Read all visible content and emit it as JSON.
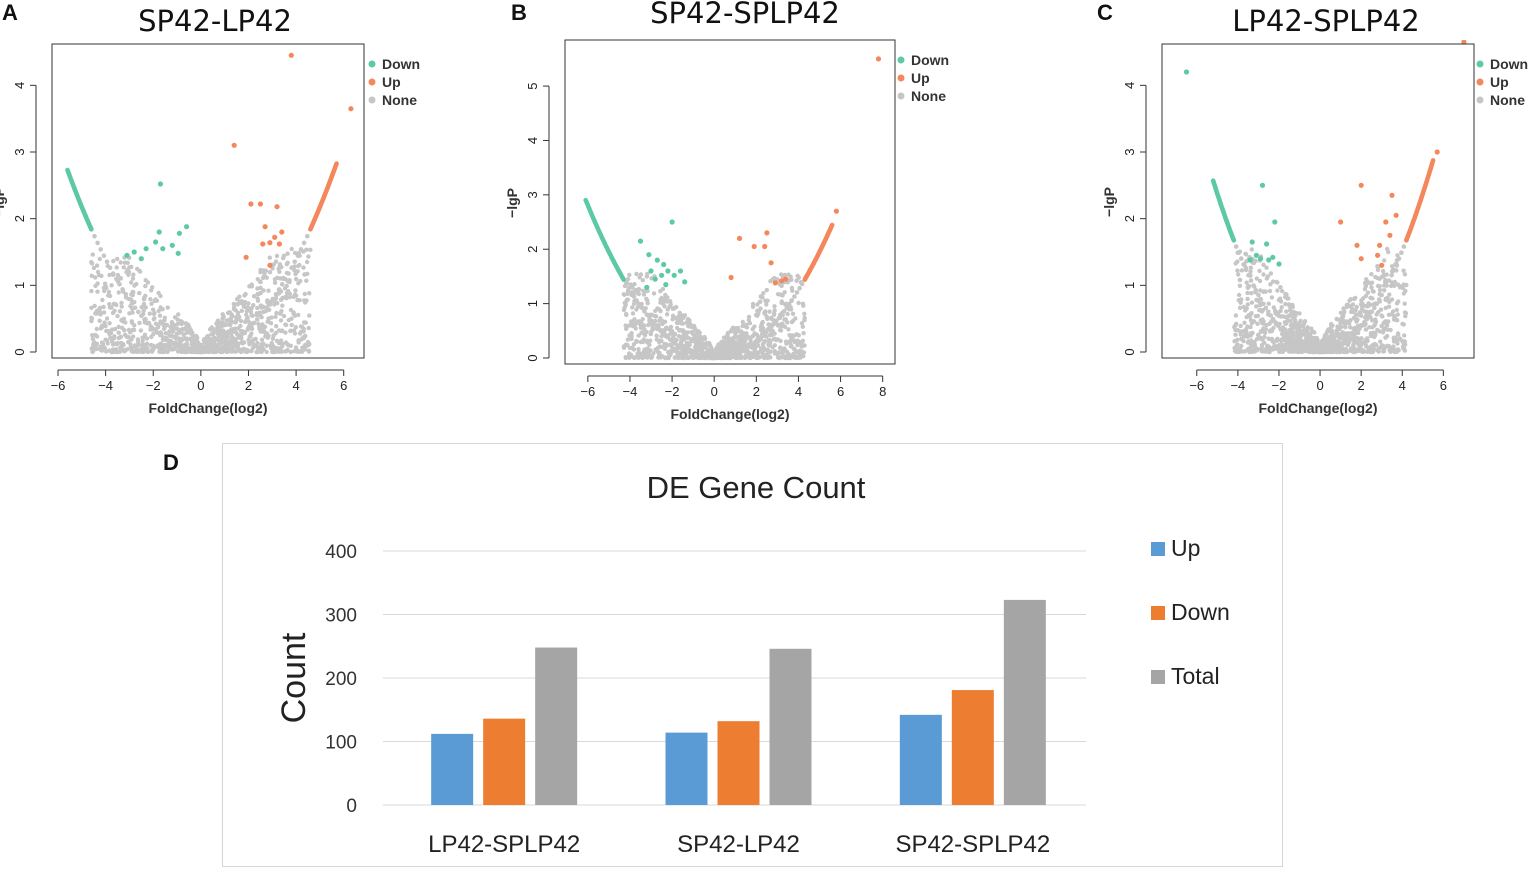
{
  "panels": {
    "a": {
      "letter": "A",
      "title": "SP42-LP42"
    },
    "b": {
      "letter": "B",
      "title": "SP42-SPLP42"
    },
    "c": {
      "letter": "C",
      "title": "LP42-SPLP42"
    },
    "d": {
      "letter": "D"
    }
  },
  "colors": {
    "down": "#5dc9a5",
    "up": "#f4875c",
    "none": "#c6c6c6",
    "bar_up": "#5b9bd5",
    "bar_down": "#ed7d31",
    "bar_total": "#a5a5a5"
  },
  "chart_data": [
    {
      "type": "scatter",
      "title": "SP42-LP42",
      "xlabel": "FoldChange(log2)",
      "ylabel": "-lgP",
      "xlim": [
        -6,
        6.6
      ],
      "ylim": [
        0,
        4.5
      ],
      "xticks": [
        -6,
        -4,
        -2,
        0,
        2,
        4,
        6
      ],
      "yticks": [
        0,
        1,
        2,
        3,
        4
      ],
      "legend": [
        "Down",
        "Up",
        "None"
      ],
      "legend_position": "top-right",
      "down_points": [
        [
          -3.1,
          1.45
        ],
        [
          -2.8,
          1.5
        ],
        [
          -2.3,
          1.55
        ],
        [
          -1.9,
          1.65
        ],
        [
          -1.75,
          1.8
        ],
        [
          -1.6,
          1.55
        ],
        [
          -1.2,
          1.6
        ],
        [
          -0.9,
          1.78
        ],
        [
          -0.6,
          1.88
        ],
        [
          -1.7,
          2.52
        ],
        [
          -2.5,
          1.4
        ],
        [
          -0.95,
          1.48
        ]
      ],
      "up_points": [
        [
          1.4,
          3.1
        ],
        [
          3.8,
          4.45
        ],
        [
          6.3,
          3.65
        ],
        [
          2.1,
          2.22
        ],
        [
          2.5,
          2.22
        ],
        [
          3.2,
          2.18
        ],
        [
          2.7,
          1.88
        ],
        [
          3.1,
          1.72
        ],
        [
          3.4,
          1.8
        ],
        [
          2.6,
          1.62
        ],
        [
          2.9,
          1.64
        ],
        [
          3.3,
          1.62
        ],
        [
          1.9,
          1.42
        ],
        [
          2.9,
          1.3
        ]
      ],
      "fringe_down": [
        -5.6,
        -4.6
      ],
      "fringe_up": [
        4.6,
        5.7
      ]
    },
    {
      "type": "scatter",
      "title": "SP42-SPLP42",
      "xlabel": "FoldChange(log2)",
      "ylabel": "-lgP",
      "xlim": [
        -6.8,
        8.3
      ],
      "ylim": [
        0,
        5.7
      ],
      "xticks": [
        -6,
        -4,
        -2,
        0,
        2,
        4,
        6,
        8
      ],
      "yticks": [
        0,
        1,
        2,
        3,
        4,
        5
      ],
      "legend": [
        "Down",
        "Up",
        "None"
      ],
      "legend_position": "top-right",
      "down_points": [
        [
          -3.5,
          2.15
        ],
        [
          -3.1,
          1.9
        ],
        [
          -2.7,
          1.8
        ],
        [
          -2.4,
          1.72
        ],
        [
          -2.2,
          1.6
        ],
        [
          -1.9,
          1.52
        ],
        [
          -1.6,
          1.6
        ],
        [
          -2.8,
          1.45
        ],
        [
          -3.0,
          1.6
        ],
        [
          -2.5,
          1.52
        ],
        [
          -2.0,
          2.5
        ],
        [
          -1.4,
          1.4
        ],
        [
          -3.2,
          1.3
        ],
        [
          -2.3,
          1.35
        ]
      ],
      "up_points": [
        [
          7.8,
          5.5
        ],
        [
          5.8,
          2.7
        ],
        [
          2.5,
          2.3
        ],
        [
          1.9,
          2.05
        ],
        [
          2.4,
          2.05
        ],
        [
          1.2,
          2.2
        ],
        [
          3.4,
          1.45
        ],
        [
          2.9,
          1.38
        ],
        [
          0.8,
          1.48
        ],
        [
          2.7,
          1.75
        ],
        [
          3.2,
          1.42
        ]
      ],
      "fringe_down": [
        -6.1,
        -4.3
      ],
      "fringe_up": [
        4.3,
        5.6
      ]
    },
    {
      "type": "scatter",
      "title": "LP42-SPLP42",
      "xlabel": "FoldChange(log2)",
      "ylabel": "-lgP",
      "xlim": [
        -7.4,
        7.2
      ],
      "ylim": [
        0,
        4.5
      ],
      "xticks": [
        -6,
        -4,
        -2,
        0,
        2,
        4,
        6
      ],
      "yticks": [
        0,
        1,
        2,
        3,
        4
      ],
      "legend": [
        "Down",
        "Up",
        "None"
      ],
      "legend_position": "top-right",
      "down_points": [
        [
          -6.5,
          4.2
        ],
        [
          -2.8,
          2.5
        ],
        [
          -2.2,
          1.95
        ],
        [
          -3.3,
          1.65
        ],
        [
          -2.6,
          1.62
        ],
        [
          -3.1,
          1.45
        ],
        [
          -2.9,
          1.4
        ],
        [
          -2.5,
          1.38
        ],
        [
          -2.0,
          1.32
        ],
        [
          -3.4,
          1.38
        ],
        [
          -2.3,
          1.42
        ]
      ],
      "up_points": [
        [
          7.0,
          4.65
        ],
        [
          5.7,
          3.0
        ],
        [
          2.0,
          2.5
        ],
        [
          3.5,
          2.35
        ],
        [
          3.7,
          2.05
        ],
        [
          3.2,
          1.95
        ],
        [
          1.8,
          1.6
        ],
        [
          1.0,
          1.95
        ],
        [
          2.9,
          1.6
        ],
        [
          3.4,
          1.75
        ],
        [
          2.0,
          1.4
        ],
        [
          2.8,
          1.45
        ],
        [
          3.0,
          1.3
        ]
      ],
      "fringe_down": [
        -5.2,
        -4.2
      ],
      "fringe_up": [
        4.2,
        5.5
      ]
    },
    {
      "type": "bar",
      "title": "DE  Gene Count",
      "xlabel": "",
      "ylabel": "Count",
      "ylim": [
        0,
        400
      ],
      "yticks": [
        0,
        100,
        200,
        300,
        400
      ],
      "categories": [
        "LP42-SPLP42",
        "SP42-LP42",
        "SP42-SPLP42"
      ],
      "series": [
        {
          "name": "Up",
          "values": [
            112,
            114,
            142
          ]
        },
        {
          "name": "Down",
          "values": [
            136,
            132,
            181
          ]
        },
        {
          "name": "Total",
          "values": [
            248,
            246,
            323
          ]
        }
      ],
      "legend_position": "right"
    }
  ]
}
